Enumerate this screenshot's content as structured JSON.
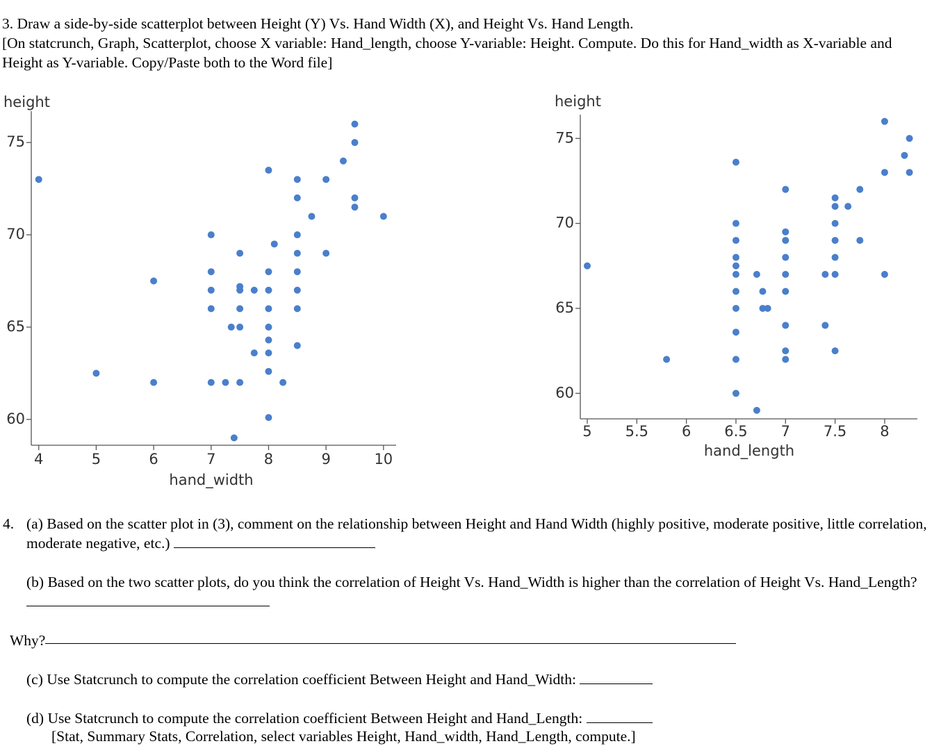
{
  "question_3": {
    "title": "3.  Draw a side-by-side scatterplot between Height (Y) Vs. Hand Width (X), and Height Vs. Hand Length.",
    "instructions": "[On statcrunch, Graph, Scatterplot, choose X variable: Hand_length, choose Y-variable: Height. Compute. Do this for Hand_width as X-variable and Height as Y-variable. Copy/Paste both to the Word file]"
  },
  "chart_data": [
    {
      "type": "scatter",
      "y_label": "height",
      "x_label": "hand_width",
      "color": "#4a7fcb",
      "xlim": [
        3.87,
        10.22
      ],
      "ylim": [
        58.6,
        76.7
      ],
      "xticks": [
        4,
        5,
        6,
        7,
        8,
        9,
        10
      ],
      "yticks": [
        60,
        65,
        70,
        75
      ],
      "x": [
        4,
        5,
        6,
        6,
        7,
        7,
        7,
        7,
        7,
        7.25,
        7.5,
        7.4,
        7.5,
        7.5,
        7.5,
        7.5,
        7.35,
        7.5,
        7.75,
        7.75,
        8,
        8,
        8,
        8,
        8,
        8,
        8,
        8,
        8,
        8.1,
        8.25,
        8.5,
        8.5,
        8.5,
        8.5,
        8.5,
        8.5,
        8.5,
        8.5,
        8.75,
        9,
        9,
        9.3,
        9.5,
        9.5,
        9.5,
        9.5,
        10
      ],
      "values": [
        73,
        62.5,
        67.5,
        62,
        70,
        68,
        67,
        66,
        62,
        62,
        62,
        59,
        69,
        67.2,
        67,
        66,
        65,
        65,
        67,
        63.6,
        73.5,
        68,
        67,
        66,
        65,
        64.3,
        63.6,
        62.6,
        60.1,
        69.5,
        62,
        73,
        72,
        70,
        69,
        68,
        67,
        66,
        64,
        71,
        73,
        69,
        74,
        76,
        75,
        72,
        71.5,
        71
      ]
    },
    {
      "type": "scatter",
      "y_label": "height",
      "x_label": "hand_length",
      "color": "#4a7fcb",
      "xlim": [
        4.93,
        8.33
      ],
      "ylim": [
        58.5,
        76.4
      ],
      "xticks": [
        5,
        5.5,
        6,
        6.5,
        7,
        7.5,
        8
      ],
      "yticks": [
        60,
        65,
        70,
        75
      ],
      "x": [
        5,
        5.8,
        6.5,
        6.5,
        6.5,
        6.5,
        6.5,
        6.5,
        6.5,
        6.5,
        6.5,
        6.5,
        6.5,
        6.71,
        6.77,
        6.77,
        6.82,
        6.71,
        7,
        7,
        7,
        7,
        7,
        7,
        7,
        7,
        7,
        7.4,
        7.4,
        7.5,
        7.5,
        7.5,
        7.5,
        7.5,
        7.5,
        7.5,
        7.63,
        7.75,
        7.75,
        8,
        8,
        8,
        8.2,
        8.25,
        8.25
      ],
      "values": [
        67.5,
        62,
        73.6,
        70,
        69,
        68,
        67.5,
        67,
        66,
        65,
        63.6,
        62,
        60,
        67,
        66,
        65,
        65,
        59,
        72,
        69.5,
        69,
        68,
        67,
        66,
        64,
        62.5,
        62,
        67,
        64,
        71.5,
        71,
        70,
        69,
        68,
        67,
        62.5,
        71,
        72,
        69,
        76,
        73,
        67,
        74,
        75,
        73
      ]
    }
  ],
  "question_4": {
    "number": "4.",
    "a": "(a) Based on the scatter plot in (3), comment on the relationship between Height and Hand Width (highly positive, moderate positive, little correlation, moderate negative, etc.)",
    "b": "(b) Based on the two scatter plots, do you think the correlation of Height Vs. Hand_Width is higher than the correlation of Height Vs. Hand_Length?",
    "why": "Why?",
    "c": "(c) Use Statcrunch to compute the correlation coefficient Between Height and Hand_Width:",
    "d": "(d)  Use Statcrunch to compute the correlation coefficient Between Height and Hand_Length:",
    "note": "[Stat, Summary Stats, Correlation, select variables Height, Hand_width, Hand_Length, compute.]"
  }
}
